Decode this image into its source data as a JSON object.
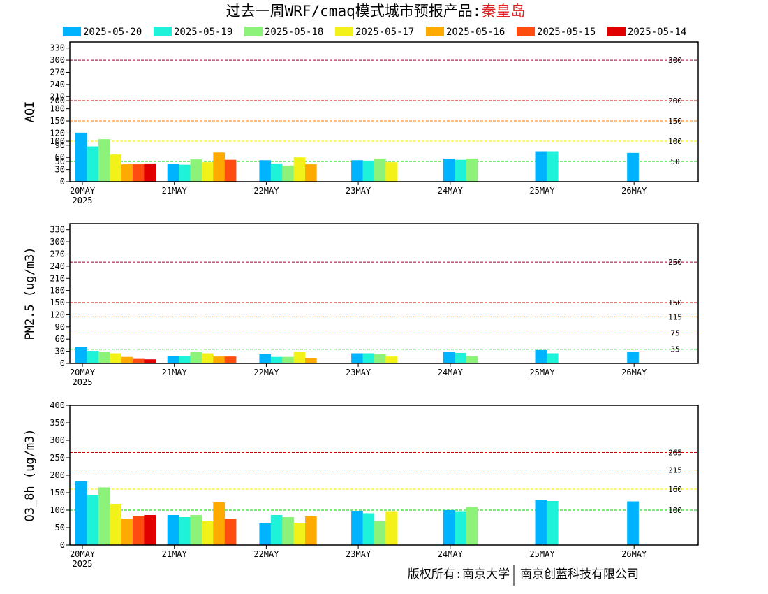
{
  "title": {
    "prefix": "过去一周WRF/cmaq模式城市预报产品:",
    "city": "秦皇岛",
    "prefix_color": "#000000",
    "city_color": "#e02020"
  },
  "legend": [
    {
      "label": "2025-05-20",
      "color": "#00b3ff"
    },
    {
      "label": "2025-05-19",
      "color": "#1ef2d9"
    },
    {
      "label": "2025-05-18",
      "color": "#8cf27a"
    },
    {
      "label": "2025-05-17",
      "color": "#f2f21a"
    },
    {
      "label": "2025-05-16",
      "color": "#ffaa00"
    },
    {
      "label": "2025-05-15",
      "color": "#ff4d0f"
    },
    {
      "label": "2025-05-14",
      "color": "#e00000"
    }
  ],
  "x_ticks": [
    "20MAY",
    "21MAY",
    "22MAY",
    "23MAY",
    "24MAY",
    "25MAY",
    "26MAY"
  ],
  "x_year": "2025",
  "footer": {
    "left": "版权所有:南京大学",
    "right": "南京创蓝科技有限公司"
  },
  "chart_data": [
    {
      "type": "bar",
      "ylabel": "AQI",
      "ylim": [
        0,
        345
      ],
      "yticks": [
        0,
        30,
        50,
        60,
        90,
        100,
        120,
        150,
        180,
        200,
        210,
        240,
        270,
        300,
        330
      ],
      "thresholds": [
        {
          "value": 300,
          "label": "300",
          "color": "#990033"
        },
        {
          "value": 200,
          "label": "200",
          "color": "#cc0000"
        },
        {
          "value": 150,
          "label": "150",
          "color": "#ff7700"
        },
        {
          "value": 100,
          "label": "100",
          "color": "#ffee00"
        },
        {
          "value": 50,
          "label": "50",
          "color": "#00cc00"
        }
      ],
      "categories": [
        "20MAY",
        "21MAY",
        "22MAY",
        "23MAY",
        "24MAY",
        "25MAY",
        "26MAY"
      ],
      "series": [
        {
          "name": "2025-05-20",
          "values": [
            121,
            44,
            53,
            53,
            57,
            75,
            71
          ]
        },
        {
          "name": "2025-05-19",
          "values": [
            87,
            42,
            45,
            52,
            54,
            75,
            null
          ]
        },
        {
          "name": "2025-05-18",
          "values": [
            105,
            55,
            40,
            57,
            57,
            null,
            null
          ]
        },
        {
          "name": "2025-05-17",
          "values": [
            67,
            48,
            60,
            48,
            null,
            null,
            null
          ]
        },
        {
          "name": "2025-05-16",
          "values": [
            43,
            72,
            43,
            null,
            null,
            null,
            null
          ]
        },
        {
          "name": "2025-05-15",
          "values": [
            43,
            54,
            null,
            null,
            null,
            null,
            null
          ]
        },
        {
          "name": "2025-05-14",
          "values": [
            45,
            null,
            null,
            null,
            null,
            null,
            null
          ]
        }
      ]
    },
    {
      "type": "bar",
      "ylabel": "PM2.5 (ug/m3)",
      "ylim": [
        0,
        345
      ],
      "yticks": [
        0,
        30,
        60,
        90,
        120,
        150,
        180,
        210,
        240,
        270,
        300,
        330
      ],
      "thresholds": [
        {
          "value": 250,
          "label": "250",
          "color": "#990033"
        },
        {
          "value": 150,
          "label": "150",
          "color": "#cc0000"
        },
        {
          "value": 115,
          "label": "115",
          "color": "#ff7700"
        },
        {
          "value": 75,
          "label": "75",
          "color": "#ffee00"
        },
        {
          "value": 35,
          "label": "35",
          "color": "#00cc00"
        }
      ],
      "categories": [
        "20MAY",
        "21MAY",
        "22MAY",
        "23MAY",
        "24MAY",
        "25MAY",
        "26MAY"
      ],
      "series": [
        {
          "name": "2025-05-20",
          "values": [
            41,
            18,
            23,
            25,
            29,
            33,
            29
          ]
        },
        {
          "name": "2025-05-19",
          "values": [
            31,
            19,
            16,
            25,
            26,
            25,
            null
          ]
        },
        {
          "name": "2025-05-18",
          "values": [
            29,
            29,
            16,
            23,
            18,
            null,
            null
          ]
        },
        {
          "name": "2025-05-17",
          "values": [
            25,
            25,
            29,
            17,
            null,
            null,
            null
          ]
        },
        {
          "name": "2025-05-16",
          "values": [
            16,
            17,
            13,
            null,
            null,
            null,
            null
          ]
        },
        {
          "name": "2025-05-15",
          "values": [
            11,
            17,
            null,
            null,
            null,
            null,
            null
          ]
        },
        {
          "name": "2025-05-14",
          "values": [
            10,
            null,
            null,
            null,
            null,
            null,
            null
          ]
        }
      ]
    },
    {
      "type": "bar",
      "ylabel": "O3_8h (ug/m3)",
      "ylim": [
        0,
        400
      ],
      "yticks": [
        0,
        50,
        100,
        150,
        200,
        250,
        300,
        350,
        400
      ],
      "thresholds": [
        {
          "value": 265,
          "label": "265",
          "color": "#cc0000"
        },
        {
          "value": 215,
          "label": "215",
          "color": "#ff7700"
        },
        {
          "value": 160,
          "label": "160",
          "color": "#ffee00"
        },
        {
          "value": 100,
          "label": "100",
          "color": "#00cc00"
        }
      ],
      "categories": [
        "20MAY",
        "21MAY",
        "22MAY",
        "23MAY",
        "24MAY",
        "25MAY",
        "26MAY"
      ],
      "series": [
        {
          "name": "2025-05-20",
          "values": [
            182,
            86,
            62,
            98,
            100,
            128,
            125
          ]
        },
        {
          "name": "2025-05-19",
          "values": [
            143,
            80,
            86,
            91,
            97,
            126,
            null
          ]
        },
        {
          "name": "2025-05-18",
          "values": [
            165,
            86,
            80,
            68,
            109,
            null,
            null
          ]
        },
        {
          "name": "2025-05-17",
          "values": [
            118,
            68,
            64,
            97,
            null,
            null,
            null
          ]
        },
        {
          "name": "2025-05-16",
          "values": [
            76,
            122,
            82,
            null,
            null,
            null,
            null
          ]
        },
        {
          "name": "2025-05-15",
          "values": [
            82,
            75,
            null,
            null,
            null,
            null,
            null
          ]
        },
        {
          "name": "2025-05-14",
          "values": [
            86,
            null,
            null,
            null,
            null,
            null,
            null
          ]
        }
      ]
    }
  ]
}
